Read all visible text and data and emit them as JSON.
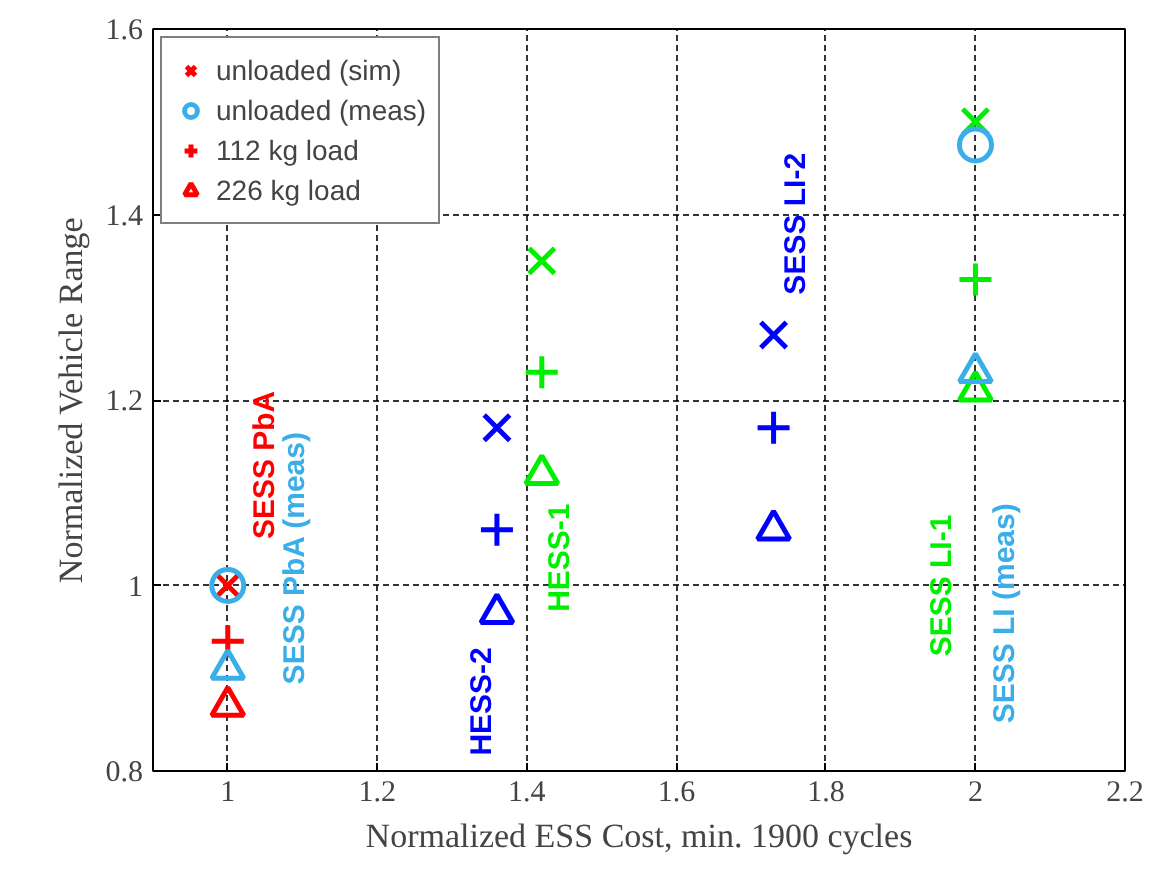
{
  "chart_data": {
    "type": "scatter",
    "xlabel": "Normalized ESS Cost, min. 1900 cycles",
    "ylabel": "Normalized Vehicle Range",
    "xlim": [
      0.9,
      2.2
    ],
    "xticks": [
      1,
      1.2,
      1.4,
      1.6,
      1.8,
      2,
      2.2
    ],
    "ylim": [
      0.8,
      1.6
    ],
    "yticks": [
      0.8,
      1,
      1.2,
      1.4,
      1.6
    ],
    "grid": true,
    "legend": "top left",
    "annotations": [
      "SESS PbA",
      "SESS PbA (meas)",
      "HESS-2",
      "HESS-1",
      "SESS LI-2",
      "SESS LI-1",
      "SESS LI (meas)"
    ],
    "series": [
      {
        "name": "unloaded (sim)",
        "marker": "x",
        "x": [
          1,
          1.36,
          1.42,
          1.73,
          2
        ],
        "values": [
          1.0,
          1.17,
          1.35,
          1.27,
          1.5
        ],
        "colors": [
          "#ff0000",
          "#0000ff",
          "#00ee00",
          "#0000ff",
          "#00ee00"
        ]
      },
      {
        "name": "unloaded (meas)",
        "marker": "circle",
        "x": [
          1,
          2
        ],
        "values": [
          1.0,
          1.475
        ],
        "colors": [
          "#3aaee8",
          "#3aaee8"
        ]
      },
      {
        "name": "112 kg load",
        "marker": "cross",
        "x": [
          1,
          1.36,
          1.42,
          1.73,
          2
        ],
        "values": [
          0.94,
          1.06,
          1.23,
          1.17,
          1.33
        ],
        "colors": [
          "#ff0000",
          "#0000ff",
          "#00ee00",
          "#0000ff",
          "#00ee00"
        ]
      },
      {
        "name": "226 kg load",
        "marker": "triangle",
        "x": [
          1,
          1,
          1.36,
          1.42,
          1.73,
          2,
          2
        ],
        "values": [
          0.87,
          0.91,
          0.97,
          1.12,
          1.06,
          1.21,
          1.23
        ],
        "colors": [
          "#ff0000",
          "#3aaee8",
          "#0000ff",
          "#00ee00",
          "#0000ff",
          "#00ee00",
          "#3aaee8"
        ]
      }
    ]
  }
}
